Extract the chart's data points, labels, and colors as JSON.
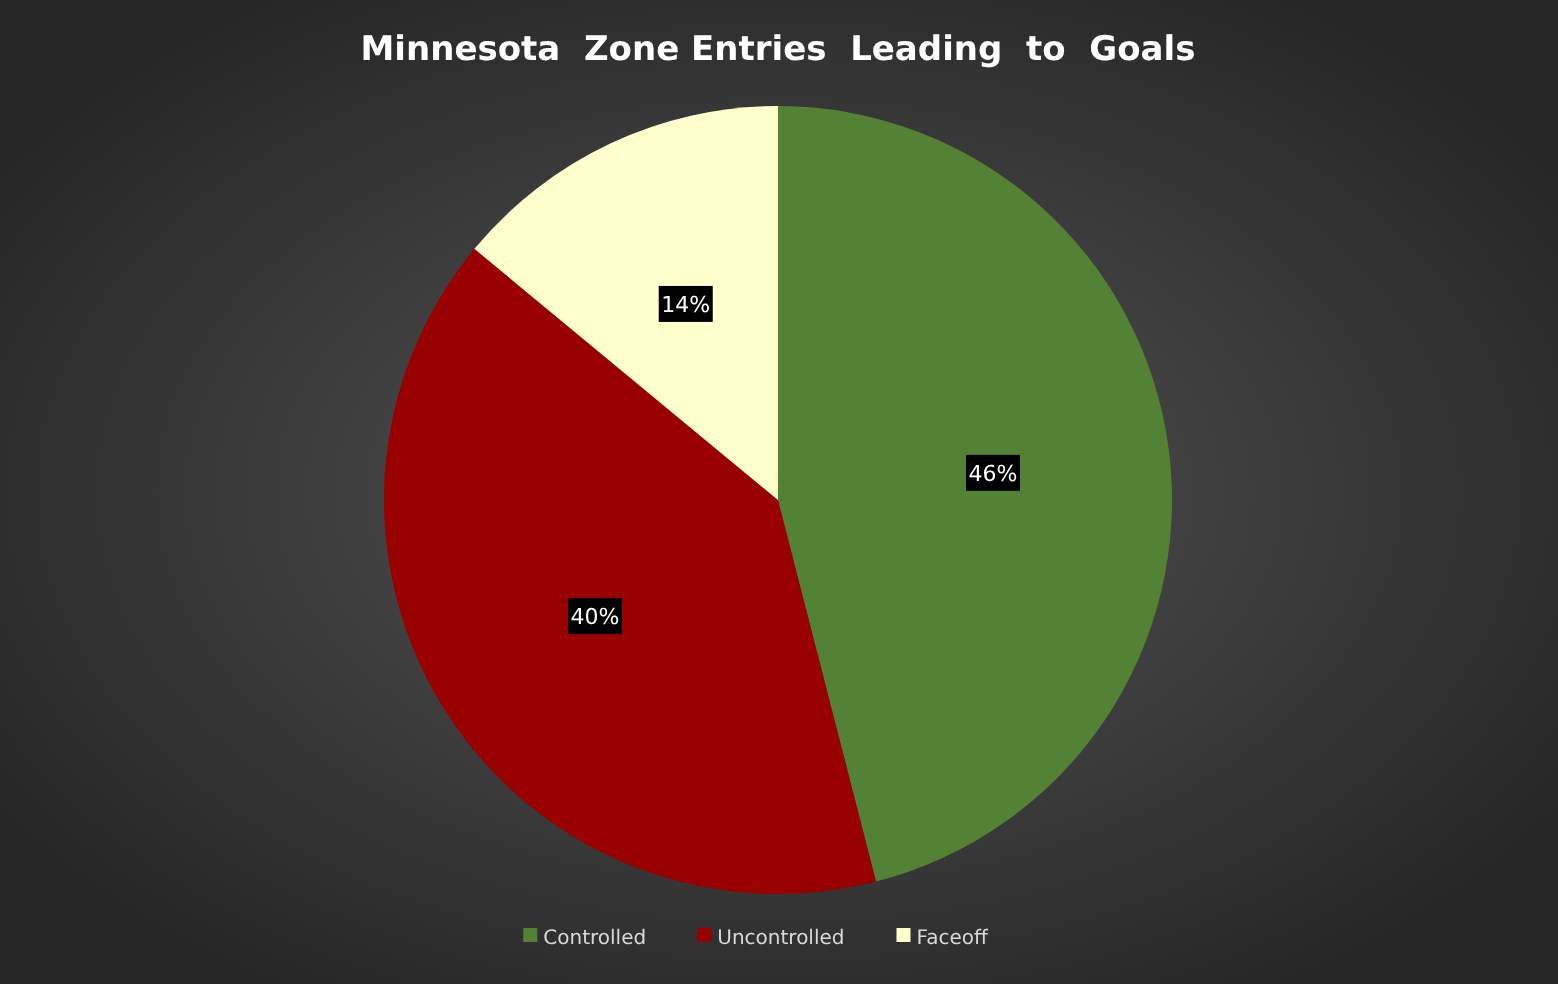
{
  "chart_data": {
    "type": "pie",
    "title": "Minnesota  Zone Entries  Leading  to  Goals",
    "categories": [
      "Controlled",
      "Uncontrolled",
      "Faceoff"
    ],
    "values": [
      46,
      40,
      14
    ],
    "colors": [
      "#548235",
      "#990000",
      "#ffffcc"
    ],
    "value_labels": [
      "46%",
      "40%",
      "14%"
    ],
    "legend": "bottom"
  }
}
